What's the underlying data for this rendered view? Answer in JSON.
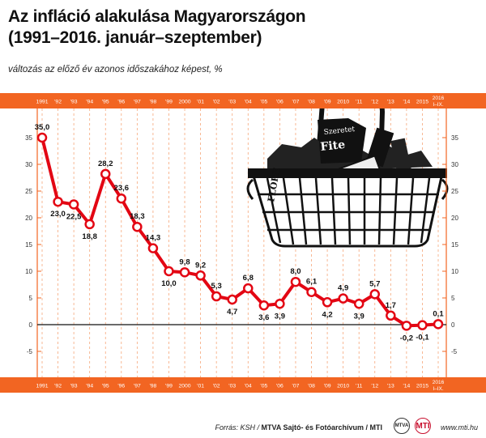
{
  "title_line1": "Az infláció alakulása Magyarországon",
  "title_line2": "(1991–2016. január–szeptember)",
  "subtitle": "változás az előző év azonos időszakához képest, %",
  "footer": {
    "source_prefix": "Forrás: KSH / ",
    "source_bold": "MTVA Sajtó- és Fotóarchívum / MTI",
    "logo1": "MTVA",
    "logo2": "MTI",
    "website": "www.mti.hu"
  },
  "colors": {
    "accent": "#f26522",
    "line": "#e30613",
    "marker_fill": "#ffffff",
    "grid": "#f6a77a"
  },
  "chart_data": {
    "type": "line",
    "categories": [
      "1991",
      "'92",
      "'93",
      "'94",
      "'95",
      "'96",
      "'97",
      "'98",
      "'99",
      "2000",
      "'01",
      "'02",
      "'03",
      "'04",
      "'05",
      "'06",
      "'07",
      "'08",
      "'09",
      "2010",
      "'11",
      "'12",
      "'13",
      "'14",
      "2015",
      "2016 I–IX."
    ],
    "values": [
      35.0,
      23.0,
      22.5,
      18.8,
      28.2,
      23.6,
      18.3,
      14.3,
      10.0,
      9.8,
      9.2,
      5.3,
      4.7,
      6.8,
      3.6,
      3.9,
      8.0,
      6.1,
      4.2,
      4.9,
      3.9,
      5.7,
      1.7,
      -0.2,
      -0.1,
      0.1
    ],
    "value_labels": [
      "35,0",
      "23,0",
      "22,5",
      "18,8",
      "28,2",
      "23,6",
      "18,3",
      "14,3",
      "10,0",
      "9,8",
      "9,2",
      "5,3",
      "4,7",
      "6,8",
      "3,6",
      "3,9",
      "8,0",
      "6,1",
      "4,2",
      "4,9",
      "3,9",
      "5,7",
      "1,7",
      "-0,2",
      "-0,1",
      "0,1"
    ],
    "label_position": [
      "above",
      "below",
      "below",
      "below",
      "above",
      "above",
      "above",
      "above",
      "below",
      "above",
      "above",
      "above",
      "below",
      "above",
      "below",
      "below",
      "above",
      "above",
      "below",
      "above",
      "below",
      "above",
      "above",
      "below",
      "below",
      "above"
    ],
    "y_ticks": [
      "35",
      "30",
      "25",
      "20",
      "15",
      "10",
      "5",
      "0",
      "-5"
    ],
    "ylim": [
      -6,
      37
    ],
    "grid": true,
    "y_axis_both_sides": true,
    "category_band_top_and_bottom": true,
    "background_image": "shopping-basket-illustration"
  }
}
